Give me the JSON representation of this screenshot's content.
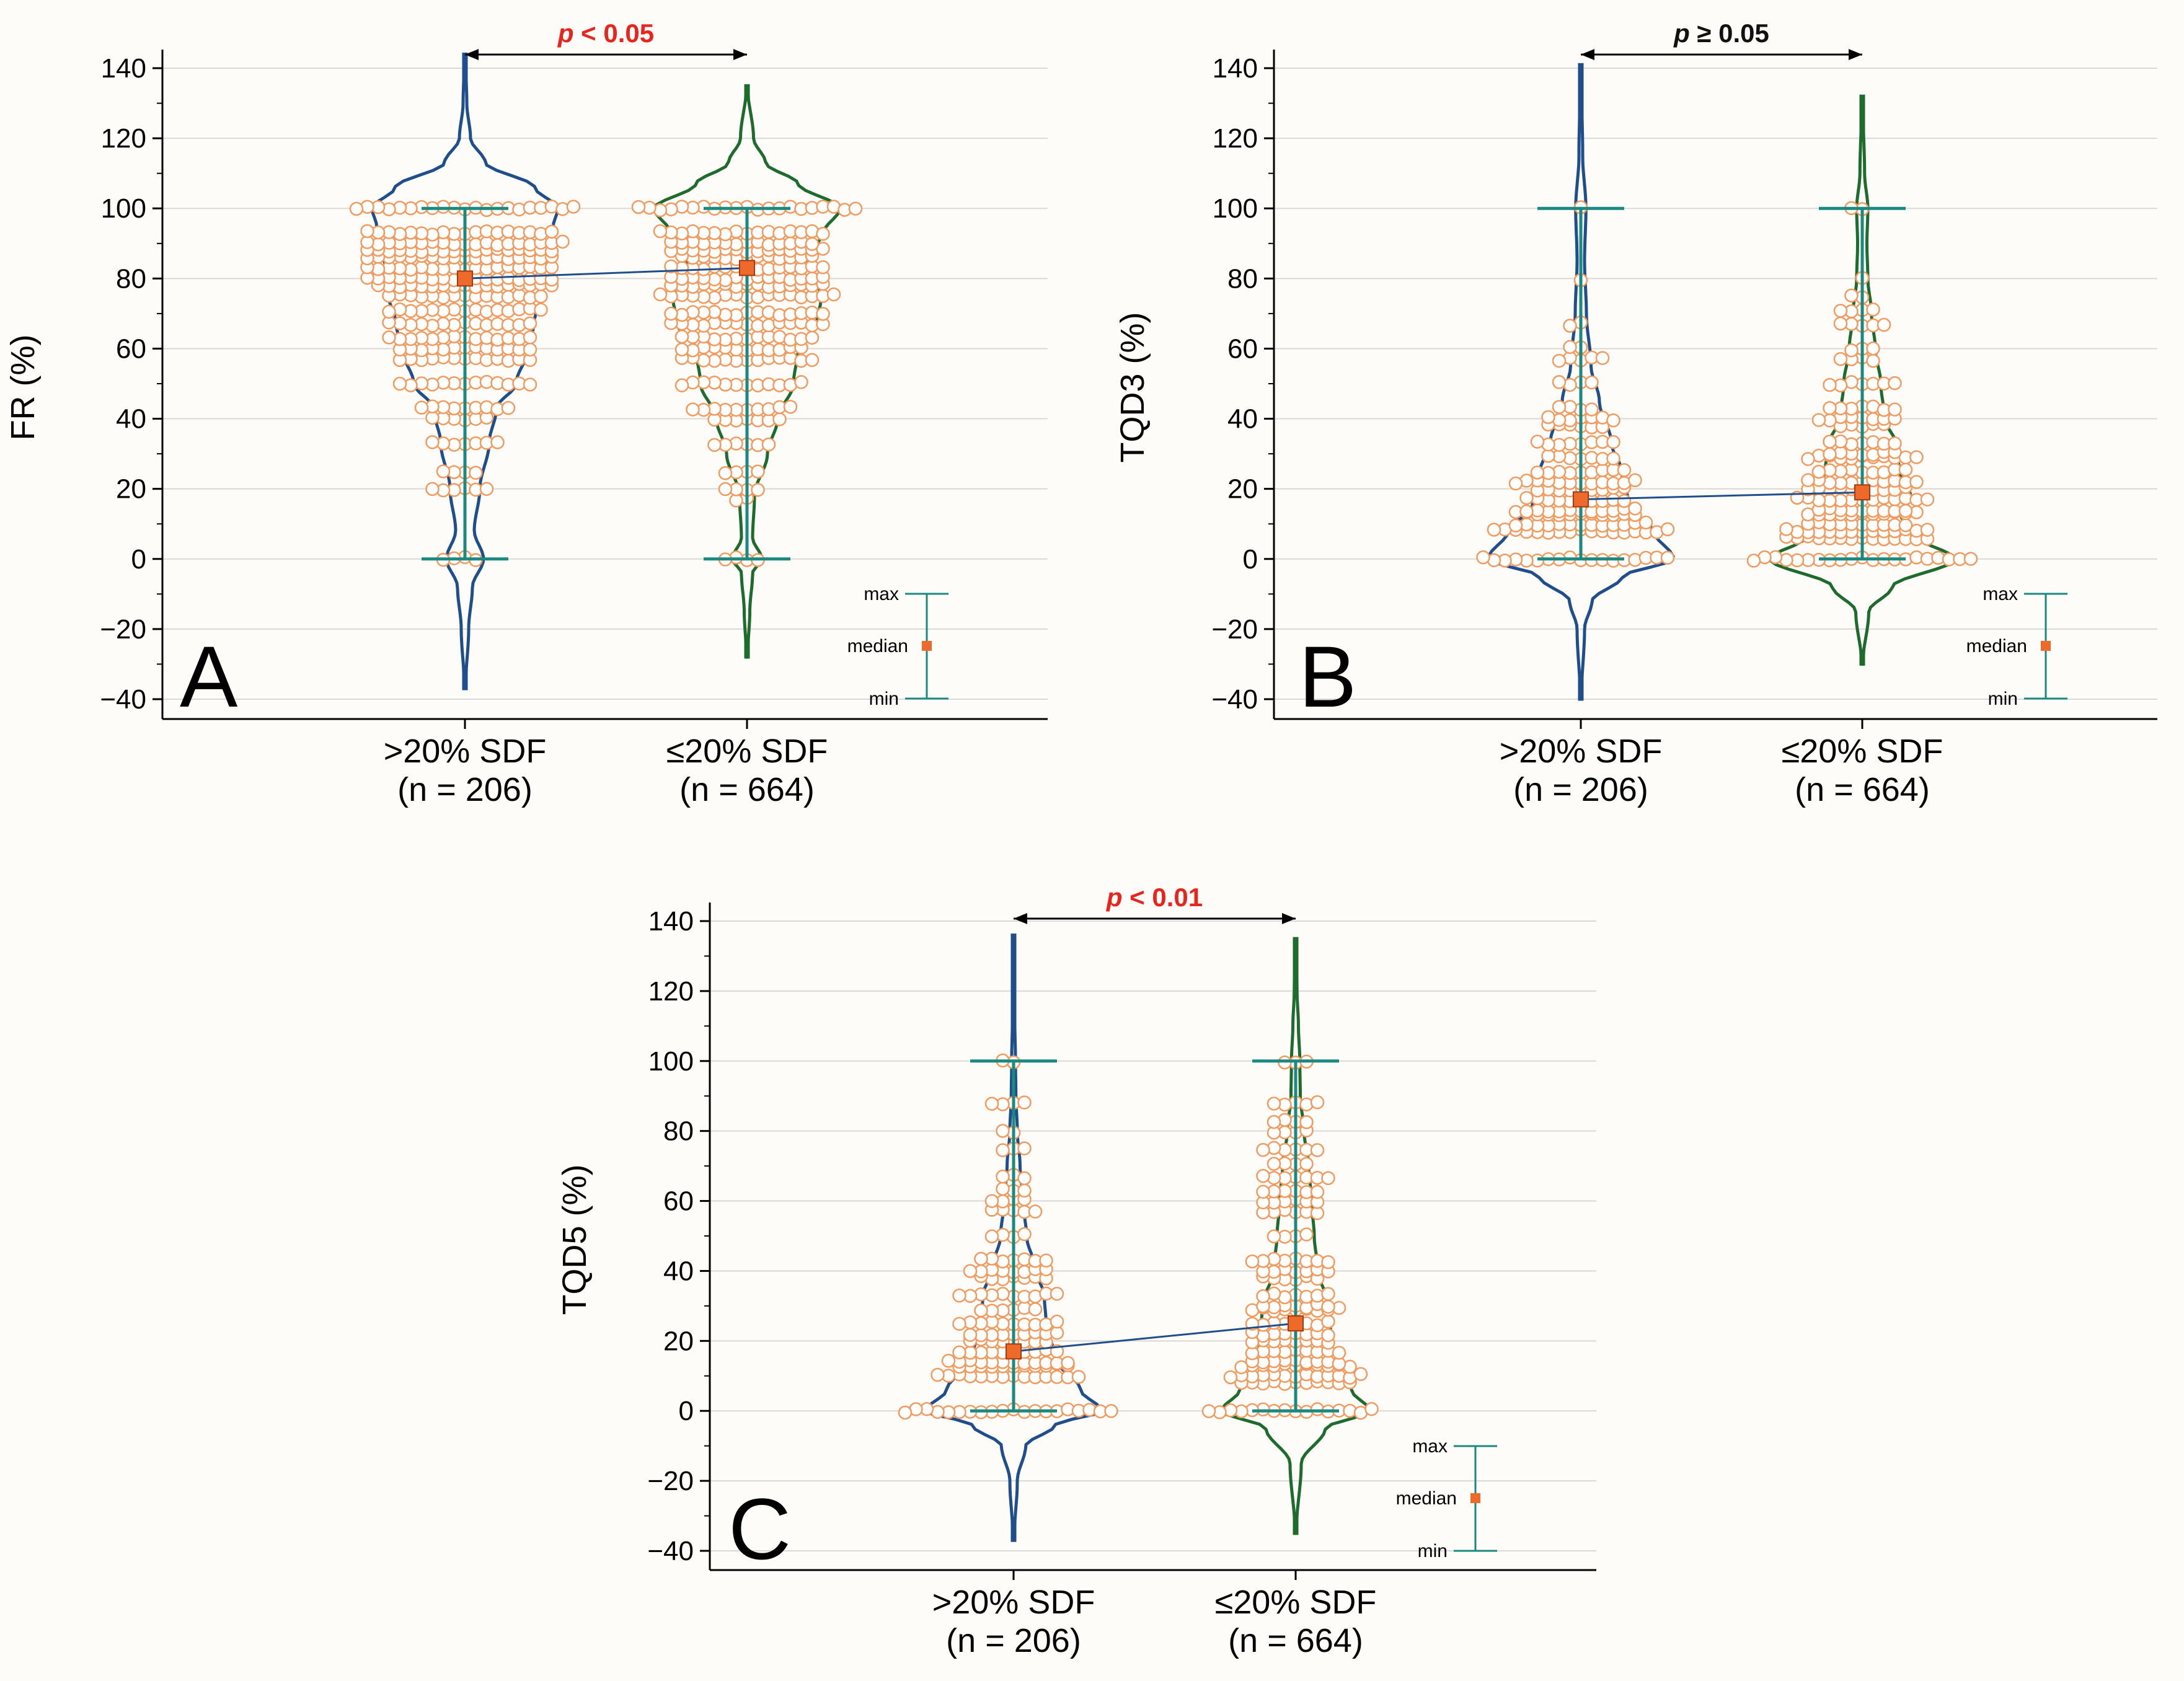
{
  "colors": {
    "violin_group1": "#1f4e8c",
    "violin_group2": "#1e6b2e",
    "whisker": "#1a8a80",
    "median_marker": "#ee6a2a",
    "point_stroke": "#f29a5e",
    "p_significant": "#e8241c",
    "p_not_significant": "#111111",
    "gridline": "#d9d9d9"
  },
  "icons": {
    "median_marker": "orange-square-icon",
    "significance_bracket": "double-arrow-icon"
  },
  "chart_data": [
    {
      "panel": "A",
      "type": "violin",
      "ylabel": "FR (%)",
      "ylim": [
        -45,
        145
      ],
      "yticks": [
        "140",
        "120",
        "100",
        "80",
        "60",
        "40",
        "20",
        "0",
        "−20",
        "−40"
      ],
      "ytick_values": [
        140,
        120,
        100,
        80,
        60,
        40,
        20,
        0,
        -20,
        -40
      ],
      "categories": [
        ">20% SDF",
        "≤20% SDF"
      ],
      "n_labels": [
        "(n = 206)",
        "(n = 664)"
      ],
      "p_label": {
        "italic": "p",
        "rest": " < 0.05",
        "significant": true
      },
      "series": [
        {
          "name": ">20% SDF",
          "median": 80,
          "min": 0,
          "max": 100,
          "violin_range": [
            -37,
            144
          ],
          "value_levels": [
            0,
            20,
            25,
            33,
            40,
            43,
            50,
            57,
            60,
            63,
            67,
            71,
            75,
            78,
            80,
            83,
            86,
            88,
            90,
            93,
            100
          ],
          "density": [
            [
              -37,
              0.005
            ],
            [
              -20,
              0.04
            ],
            [
              -8,
              0.08
            ],
            [
              0,
              0.2
            ],
            [
              8,
              0.1
            ],
            [
              20,
              0.16
            ],
            [
              33,
              0.26
            ],
            [
              43,
              0.34
            ],
            [
              50,
              0.55
            ],
            [
              60,
              0.68
            ],
            [
              67,
              0.74
            ],
            [
              75,
              0.82
            ],
            [
              80,
              0.84
            ],
            [
              88,
              0.88
            ],
            [
              95,
              0.95
            ],
            [
              100,
              1.0
            ],
            [
              106,
              0.75
            ],
            [
              113,
              0.22
            ],
            [
              120,
              0.06
            ],
            [
              130,
              0.02
            ],
            [
              144,
              0.004
            ]
          ]
        },
        {
          "name": "≤20% SDF",
          "median": 83,
          "min": 0,
          "max": 100,
          "violin_range": [
            -28,
            135
          ],
          "value_levels": [
            0,
            17,
            20,
            25,
            33,
            40,
            43,
            50,
            57,
            60,
            63,
            67,
            70,
            75,
            78,
            80,
            83,
            86,
            88,
            90,
            93,
            100
          ],
          "density": [
            [
              -28,
              0.005
            ],
            [
              -15,
              0.03
            ],
            [
              -4,
              0.06
            ],
            [
              0,
              0.16
            ],
            [
              6,
              0.06
            ],
            [
              18,
              0.08
            ],
            [
              30,
              0.22
            ],
            [
              40,
              0.33
            ],
            [
              50,
              0.5
            ],
            [
              60,
              0.55
            ],
            [
              67,
              0.75
            ],
            [
              75,
              0.8
            ],
            [
              80,
              0.72
            ],
            [
              86,
              0.64
            ],
            [
              93,
              0.82
            ],
            [
              100,
              1.0
            ],
            [
              107,
              0.55
            ],
            [
              113,
              0.2
            ],
            [
              120,
              0.07
            ],
            [
              135,
              0.004
            ]
          ]
        }
      ],
      "legend": {
        "max": "max",
        "median": "median",
        "min": "min"
      }
    },
    {
      "panel": "B",
      "type": "violin",
      "ylabel": "TQD3 (%)",
      "ylim": [
        -45,
        145
      ],
      "yticks": [
        "140",
        "120",
        "100",
        "80",
        "60",
        "40",
        "20",
        "0",
        "−20",
        "−40"
      ],
      "ytick_values": [
        140,
        120,
        100,
        80,
        60,
        40,
        20,
        0,
        -20,
        -40
      ],
      "categories": [
        ">20% SDF",
        "≤20% SDF"
      ],
      "n_labels": [
        "(n = 206)",
        "(n = 664)"
      ],
      "p_label": {
        "italic": "p",
        "rest": " ≥ 0.05",
        "significant": false
      },
      "series": [
        {
          "name": ">20% SDF",
          "median": 17,
          "min": 0,
          "max": 100,
          "violin_range": [
            -40,
            141
          ],
          "value_levels": [
            0,
            8,
            10,
            13,
            14,
            17,
            20,
            22,
            25,
            29,
            33,
            38,
            40,
            43,
            50,
            57,
            60,
            67,
            80,
            100
          ],
          "density": [
            [
              -40,
              0.005
            ],
            [
              -20,
              0.04
            ],
            [
              -12,
              0.12
            ],
            [
              -5,
              0.45
            ],
            [
              0,
              1.0
            ],
            [
              8,
              0.78
            ],
            [
              15,
              0.52
            ],
            [
              25,
              0.44
            ],
            [
              33,
              0.33
            ],
            [
              45,
              0.2
            ],
            [
              55,
              0.11
            ],
            [
              70,
              0.06
            ],
            [
              85,
              0.04
            ],
            [
              100,
              0.055
            ],
            [
              115,
              0.02
            ],
            [
              141,
              0.003
            ]
          ]
        },
        {
          "name": "≤20% SDF",
          "median": 19,
          "min": 0,
          "max": 100,
          "violin_range": [
            -30,
            132
          ],
          "value_levels": [
            0,
            6,
            8,
            10,
            13,
            14,
            17,
            20,
            22,
            25,
            29,
            30,
            33,
            38,
            40,
            43,
            50,
            57,
            60,
            67,
            71,
            75,
            80,
            100
          ],
          "density": [
            [
              -30,
              0.005
            ],
            [
              -15,
              0.07
            ],
            [
              -8,
              0.32
            ],
            [
              0,
              1.0
            ],
            [
              6,
              0.62
            ],
            [
              12,
              0.42
            ],
            [
              18,
              0.52
            ],
            [
              25,
              0.4
            ],
            [
              33,
              0.36
            ],
            [
              40,
              0.24
            ],
            [
              50,
              0.2
            ],
            [
              60,
              0.14
            ],
            [
              70,
              0.1
            ],
            [
              80,
              0.06
            ],
            [
              90,
              0.05
            ],
            [
              100,
              0.06
            ],
            [
              110,
              0.025
            ],
            [
              132,
              0.003
            ]
          ]
        }
      ],
      "legend": {
        "max": "max",
        "median": "median",
        "min": "min"
      }
    },
    {
      "panel": "C",
      "type": "violin",
      "ylabel": "TQD5 (%)",
      "ylim": [
        -45,
        145
      ],
      "yticks": [
        "140",
        "120",
        "100",
        "80",
        "60",
        "40",
        "20",
        "0",
        "−20",
        "−40"
      ],
      "ytick_values": [
        140,
        120,
        100,
        80,
        60,
        40,
        20,
        0,
        -20,
        -40
      ],
      "categories": [
        ">20% SDF",
        "≤20% SDF"
      ],
      "n_labels": [
        "(n = 206)",
        "(n = 664)"
      ],
      "p_label": {
        "italic": "p",
        "rest": " < 0.01",
        "significant": true
      },
      "series": [
        {
          "name": ">20% SDF",
          "median": 17,
          "min": 0,
          "max": 100,
          "violin_range": [
            -37,
            136
          ],
          "value_levels": [
            0,
            10,
            13,
            14,
            17,
            20,
            22,
            25,
            29,
            33,
            38,
            40,
            43,
            50,
            57,
            60,
            63,
            67,
            75,
            80,
            88,
            100
          ],
          "density": [
            [
              -37,
              0.005
            ],
            [
              -20,
              0.04
            ],
            [
              -10,
              0.13
            ],
            [
              -4,
              0.45
            ],
            [
              0,
              0.95
            ],
            [
              6,
              0.72
            ],
            [
              15,
              0.45
            ],
            [
              25,
              0.35
            ],
            [
              33,
              0.33
            ],
            [
              40,
              0.24
            ],
            [
              50,
              0.14
            ],
            [
              60,
              0.1
            ],
            [
              70,
              0.07
            ],
            [
              80,
              0.04
            ],
            [
              90,
              0.025
            ],
            [
              100,
              0.02
            ],
            [
              115,
              0.01
            ],
            [
              136,
              0.003
            ]
          ]
        },
        {
          "name": "≤20% SDF",
          "median": 25,
          "min": 0,
          "max": 100,
          "violin_range": [
            -35,
            135
          ],
          "value_levels": [
            0,
            8,
            10,
            13,
            14,
            17,
            20,
            22,
            25,
            29,
            30,
            33,
            38,
            40,
            43,
            50,
            57,
            60,
            63,
            67,
            71,
            75,
            80,
            83,
            88,
            100
          ],
          "density": [
            [
              -35,
              0.005
            ],
            [
              -15,
              0.06
            ],
            [
              -5,
              0.32
            ],
            [
              0,
              0.8
            ],
            [
              6,
              0.6
            ],
            [
              14,
              0.44
            ],
            [
              20,
              0.38
            ],
            [
              30,
              0.36
            ],
            [
              40,
              0.24
            ],
            [
              50,
              0.2
            ],
            [
              60,
              0.17
            ],
            [
              70,
              0.14
            ],
            [
              80,
              0.09
            ],
            [
              90,
              0.05
            ],
            [
              100,
              0.045
            ],
            [
              110,
              0.03
            ],
            [
              120,
              0.015
            ],
            [
              135,
              0.003
            ]
          ]
        }
      ],
      "legend": {
        "max": "max",
        "median": "median",
        "min": "min"
      }
    }
  ]
}
